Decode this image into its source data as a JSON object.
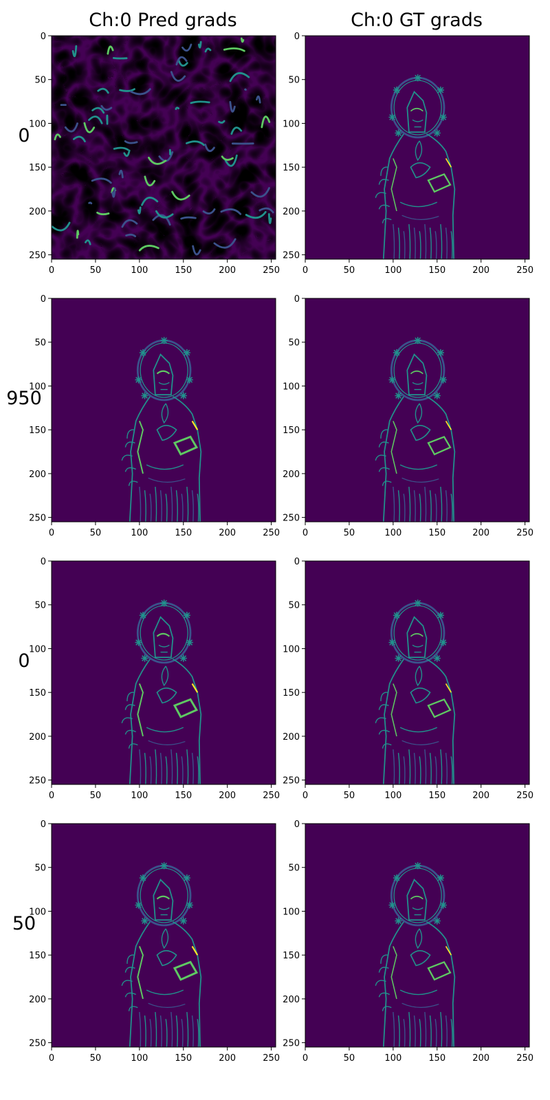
{
  "columns": [
    {
      "title": "Ch:0 Pred grads"
    },
    {
      "title": "Ch:0 GT grads"
    }
  ],
  "rows": [
    {
      "label": "0"
    },
    {
      "label": "950"
    },
    {
      "label": "0"
    },
    {
      "label": "50"
    }
  ],
  "colors": {
    "background": "#440154",
    "edge_low": "#3b528b",
    "edge_mid": "#21918c",
    "edge_high": "#5ec962",
    "edge_peak": "#fde725"
  },
  "chart_data": [
    {
      "type": "heatmap",
      "panel": "row0-pred",
      "content": "random noise gradient field",
      "xlim": [
        0,
        255
      ],
      "ylim": [
        255,
        0
      ],
      "xticks": [
        0,
        50,
        100,
        150,
        200,
        250
      ],
      "yticks": [
        0,
        50,
        100,
        150,
        200,
        250
      ]
    },
    {
      "type": "heatmap",
      "panel": "row0-gt",
      "content": "statue edge gradients",
      "xlim": [
        0,
        255
      ],
      "ylim": [
        255,
        0
      ],
      "xticks": [
        0,
        50,
        100,
        150,
        200,
        250
      ],
      "yticks": [
        0,
        50,
        100,
        150,
        200,
        250
      ]
    },
    {
      "type": "heatmap",
      "panel": "row1-pred",
      "content": "statue edge gradients",
      "xlim": [
        0,
        255
      ],
      "ylim": [
        255,
        0
      ],
      "xticks": [
        0,
        50,
        100,
        150,
        200,
        250
      ],
      "yticks": [
        0,
        50,
        100,
        150,
        200,
        250
      ]
    },
    {
      "type": "heatmap",
      "panel": "row1-gt",
      "content": "statue edge gradients",
      "xlim": [
        0,
        255
      ],
      "ylim": [
        255,
        0
      ],
      "xticks": [
        0,
        50,
        100,
        150,
        200,
        250
      ],
      "yticks": [
        0,
        50,
        100,
        150,
        200,
        250
      ]
    },
    {
      "type": "heatmap",
      "panel": "row2-pred",
      "content": "statue edge gradients",
      "xlim": [
        0,
        255
      ],
      "ylim": [
        255,
        0
      ],
      "xticks": [
        0,
        50,
        100,
        150,
        200,
        250
      ],
      "yticks": [
        0,
        50,
        100,
        150,
        200,
        250
      ]
    },
    {
      "type": "heatmap",
      "panel": "row2-gt",
      "content": "statue edge gradients",
      "xlim": [
        0,
        255
      ],
      "ylim": [
        255,
        0
      ],
      "xticks": [
        0,
        50,
        100,
        150,
        200,
        250
      ],
      "yticks": [
        0,
        50,
        100,
        150,
        200,
        250
      ]
    },
    {
      "type": "heatmap",
      "panel": "row3-pred",
      "content": "statue edge gradients",
      "xlim": [
        0,
        255
      ],
      "ylim": [
        255,
        0
      ],
      "xticks": [
        0,
        50,
        100,
        150,
        200,
        250
      ],
      "yticks": [
        0,
        50,
        100,
        150,
        200,
        250
      ]
    },
    {
      "type": "heatmap",
      "panel": "row3-gt",
      "content": "statue edge gradients",
      "xlim": [
        0,
        255
      ],
      "ylim": [
        255,
        0
      ],
      "xticks": [
        0,
        50,
        100,
        150,
        200,
        250
      ],
      "yticks": [
        0,
        50,
        100,
        150,
        200,
        250
      ]
    }
  ]
}
